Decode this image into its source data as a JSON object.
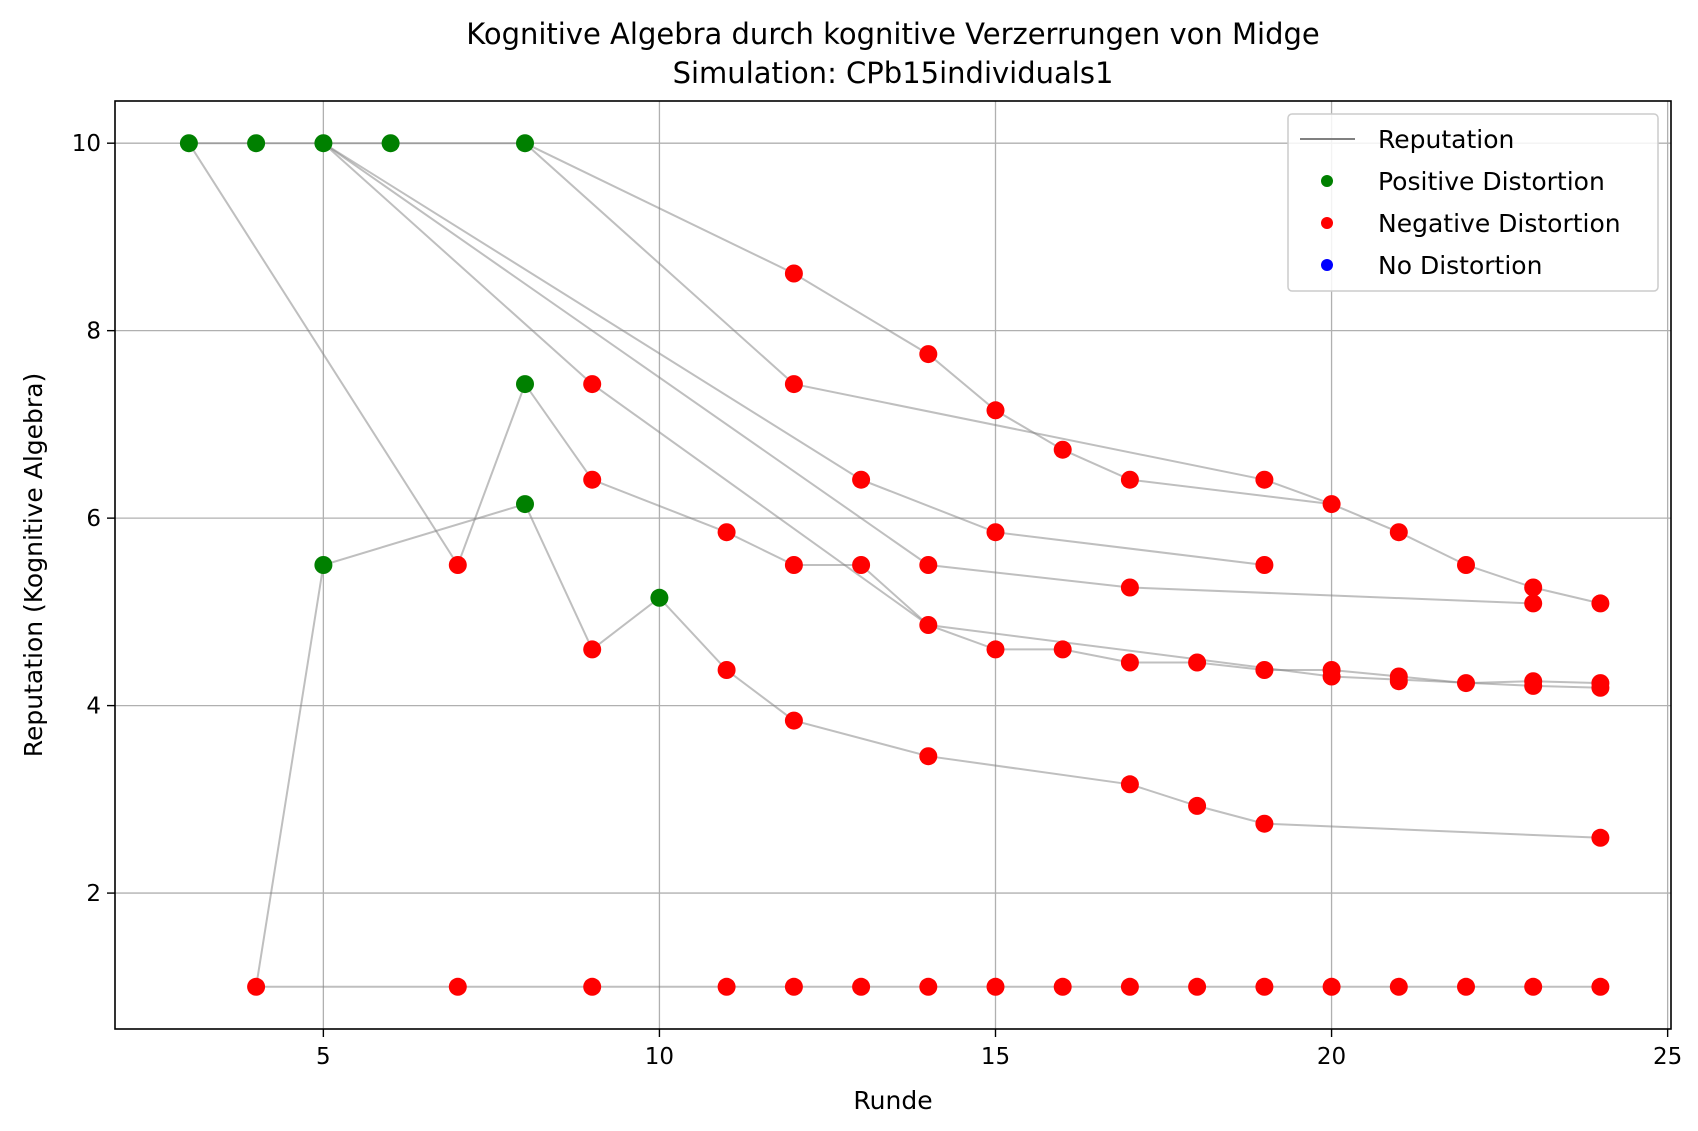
{
  "chart_data": {
    "type": "scatter",
    "title": "Kognitive Algebra durch kognitive Verzerrungen von Midge",
    "subtitle": "Simulation: CPb15individuals1",
    "xlabel": "Runde",
    "ylabel": "Reputation (Kognitive Algebra)",
    "xlim": [
      1.9,
      25.05
    ],
    "ylim": [
      0.55,
      10.45
    ],
    "xticks": [
      5,
      10,
      15,
      20,
      25
    ],
    "yticks": [
      2,
      4,
      6,
      8,
      10
    ],
    "grid": true,
    "legend_position": "top-right",
    "legend": [
      {
        "label": "Reputation",
        "kind": "line",
        "color": "#808080"
      },
      {
        "label": "Positive Distortion",
        "kind": "marker",
        "color": "#008000"
      },
      {
        "label": "Negative Distortion",
        "kind": "marker",
        "color": "#ff0000"
      },
      {
        "label": "No Distortion",
        "kind": "marker",
        "color": "#0000ff"
      }
    ],
    "series": [
      {
        "points": [
          [
            3,
            10
          ],
          [
            4,
            10
          ],
          [
            5,
            10
          ],
          [
            6,
            10
          ],
          [
            8,
            10
          ]
        ]
      },
      {
        "points": [
          [
            3,
            10
          ],
          [
            7,
            5.5
          ],
          [
            8,
            7.43
          ],
          [
            9,
            6.41
          ],
          [
            11,
            5.85
          ],
          [
            12,
            5.5
          ],
          [
            13,
            5.5
          ],
          [
            14,
            4.86
          ],
          [
            15,
            4.6
          ],
          [
            16,
            4.6
          ],
          [
            17,
            4.46
          ],
          [
            18,
            4.46
          ],
          [
            19,
            4.38
          ],
          [
            20,
            4.38
          ],
          [
            21,
            4.31
          ],
          [
            22,
            4.24
          ],
          [
            23,
            4.26
          ],
          [
            24,
            4.24
          ]
        ]
      },
      {
        "points": [
          [
            4,
            1
          ],
          [
            5,
            5.5
          ],
          [
            8,
            6.15
          ],
          [
            9,
            4.6
          ],
          [
            10,
            5.15
          ],
          [
            11,
            4.38
          ],
          [
            12,
            3.84
          ],
          [
            14,
            3.46
          ],
          [
            17,
            3.16
          ],
          [
            18,
            2.93
          ],
          [
            19,
            2.74
          ],
          [
            24,
            2.59
          ]
        ]
      },
      {
        "points": [
          [
            4,
            1
          ],
          [
            7,
            1
          ],
          [
            9,
            1
          ],
          [
            11,
            1
          ],
          [
            12,
            1
          ],
          [
            13,
            1
          ],
          [
            14,
            1
          ],
          [
            15,
            1
          ],
          [
            16,
            1
          ],
          [
            17,
            1
          ],
          [
            18,
            1
          ],
          [
            19,
            1
          ],
          [
            20,
            1
          ],
          [
            21,
            1
          ],
          [
            22,
            1
          ],
          [
            23,
            1
          ],
          [
            24,
            1
          ]
        ]
      },
      {
        "points": [
          [
            8,
            10
          ],
          [
            12,
            8.61
          ],
          [
            14,
            7.75
          ],
          [
            15,
            7.15
          ],
          [
            16,
            6.73
          ],
          [
            17,
            6.41
          ],
          [
            20,
            6.15
          ],
          [
            21,
            5.85
          ],
          [
            22,
            5.5
          ],
          [
            23,
            5.26
          ],
          [
            24,
            5.09
          ]
        ]
      },
      {
        "points": [
          [
            8,
            10
          ],
          [
            12,
            7.43
          ],
          [
            19,
            6.41
          ],
          [
            20,
            6.15
          ]
        ]
      },
      {
        "points": [
          [
            5,
            10
          ],
          [
            13,
            6.41
          ],
          [
            15,
            5.85
          ],
          [
            19,
            5.5
          ]
        ]
      },
      {
        "points": [
          [
            5,
            10
          ],
          [
            14,
            5.5
          ],
          [
            17,
            5.26
          ],
          [
            23,
            5.09
          ]
        ]
      },
      {
        "points": [
          [
            5,
            10
          ],
          [
            9,
            7.43
          ],
          [
            14,
            4.86
          ],
          [
            20,
            4.31
          ],
          [
            23,
            4.21
          ],
          [
            24,
            4.19
          ]
        ]
      }
    ],
    "markers": [
      {
        "x": 3,
        "y": 10,
        "d": "positive"
      },
      {
        "x": 4,
        "y": 10,
        "d": "positive"
      },
      {
        "x": 5,
        "y": 10,
        "d": "positive"
      },
      {
        "x": 6,
        "y": 10,
        "d": "positive"
      },
      {
        "x": 8,
        "y": 10,
        "d": "positive"
      },
      {
        "x": 5,
        "y": 5.5,
        "d": "positive"
      },
      {
        "x": 8,
        "y": 7.43,
        "d": "positive"
      },
      {
        "x": 8,
        "y": 6.15,
        "d": "positive"
      },
      {
        "x": 10,
        "y": 5.15,
        "d": "positive"
      },
      {
        "x": 4,
        "y": 1,
        "d": "negative"
      },
      {
        "x": 7,
        "y": 1,
        "d": "negative"
      },
      {
        "x": 9,
        "y": 1,
        "d": "negative"
      },
      {
        "x": 11,
        "y": 1,
        "d": "negative"
      },
      {
        "x": 12,
        "y": 1,
        "d": "negative"
      },
      {
        "x": 13,
        "y": 1,
        "d": "negative"
      },
      {
        "x": 14,
        "y": 1,
        "d": "negative"
      },
      {
        "x": 15,
        "y": 1,
        "d": "negative"
      },
      {
        "x": 16,
        "y": 1,
        "d": "negative"
      },
      {
        "x": 17,
        "y": 1,
        "d": "negative"
      },
      {
        "x": 18,
        "y": 1,
        "d": "negative"
      },
      {
        "x": 19,
        "y": 1,
        "d": "negative"
      },
      {
        "x": 20,
        "y": 1,
        "d": "negative"
      },
      {
        "x": 21,
        "y": 1,
        "d": "negative"
      },
      {
        "x": 22,
        "y": 1,
        "d": "negative"
      },
      {
        "x": 23,
        "y": 1,
        "d": "negative"
      },
      {
        "x": 24,
        "y": 1,
        "d": "negative"
      },
      {
        "x": 7,
        "y": 5.5,
        "d": "negative"
      },
      {
        "x": 9,
        "y": 7.43,
        "d": "negative"
      },
      {
        "x": 9,
        "y": 6.41,
        "d": "negative"
      },
      {
        "x": 9,
        "y": 4.6,
        "d": "negative"
      },
      {
        "x": 11,
        "y": 5.85,
        "d": "negative"
      },
      {
        "x": 11,
        "y": 4.38,
        "d": "negative"
      },
      {
        "x": 12,
        "y": 8.61,
        "d": "negative"
      },
      {
        "x": 12,
        "y": 7.43,
        "d": "negative"
      },
      {
        "x": 12,
        "y": 5.5,
        "d": "negative"
      },
      {
        "x": 12,
        "y": 3.84,
        "d": "negative"
      },
      {
        "x": 13,
        "y": 6.41,
        "d": "negative"
      },
      {
        "x": 13,
        "y": 5.5,
        "d": "negative"
      },
      {
        "x": 14,
        "y": 7.75,
        "d": "negative"
      },
      {
        "x": 14,
        "y": 5.5,
        "d": "negative"
      },
      {
        "x": 14,
        "y": 4.86,
        "d": "negative"
      },
      {
        "x": 14,
        "y": 3.46,
        "d": "negative"
      },
      {
        "x": 15,
        "y": 7.15,
        "d": "negative"
      },
      {
        "x": 15,
        "y": 5.85,
        "d": "negative"
      },
      {
        "x": 15,
        "y": 4.6,
        "d": "negative"
      },
      {
        "x": 16,
        "y": 6.73,
        "d": "negative"
      },
      {
        "x": 16,
        "y": 4.6,
        "d": "negative"
      },
      {
        "x": 17,
        "y": 6.41,
        "d": "negative"
      },
      {
        "x": 17,
        "y": 5.26,
        "d": "negative"
      },
      {
        "x": 17,
        "y": 4.46,
        "d": "negative"
      },
      {
        "x": 17,
        "y": 3.16,
        "d": "negative"
      },
      {
        "x": 18,
        "y": 4.46,
        "d": "negative"
      },
      {
        "x": 18,
        "y": 2.93,
        "d": "negative"
      },
      {
        "x": 19,
        "y": 6.41,
        "d": "negative"
      },
      {
        "x": 19,
        "y": 5.5,
        "d": "negative"
      },
      {
        "x": 19,
        "y": 4.38,
        "d": "negative"
      },
      {
        "x": 19,
        "y": 2.74,
        "d": "negative"
      },
      {
        "x": 20,
        "y": 6.15,
        "d": "negative"
      },
      {
        "x": 20,
        "y": 4.38,
        "d": "negative"
      },
      {
        "x": 20,
        "y": 4.31,
        "d": "negative"
      },
      {
        "x": 21,
        "y": 5.85,
        "d": "negative"
      },
      {
        "x": 21,
        "y": 4.31,
        "d": "negative"
      },
      {
        "x": 21,
        "y": 4.26,
        "d": "negative"
      },
      {
        "x": 22,
        "y": 5.5,
        "d": "negative"
      },
      {
        "x": 22,
        "y": 4.24,
        "d": "negative"
      },
      {
        "x": 23,
        "y": 5.26,
        "d": "negative"
      },
      {
        "x": 23,
        "y": 5.09,
        "d": "negative"
      },
      {
        "x": 23,
        "y": 4.26,
        "d": "negative"
      },
      {
        "x": 23,
        "y": 4.21,
        "d": "negative"
      },
      {
        "x": 24,
        "y": 5.09,
        "d": "negative"
      },
      {
        "x": 24,
        "y": 4.24,
        "d": "negative"
      },
      {
        "x": 24,
        "y": 4.19,
        "d": "negative"
      },
      {
        "x": 24,
        "y": 2.59,
        "d": "negative"
      }
    ],
    "colors": {
      "positive": "#008000",
      "negative": "#ff0000",
      "none": "#0000ff",
      "line": "#808080",
      "grid": "#b0b0b0"
    }
  }
}
